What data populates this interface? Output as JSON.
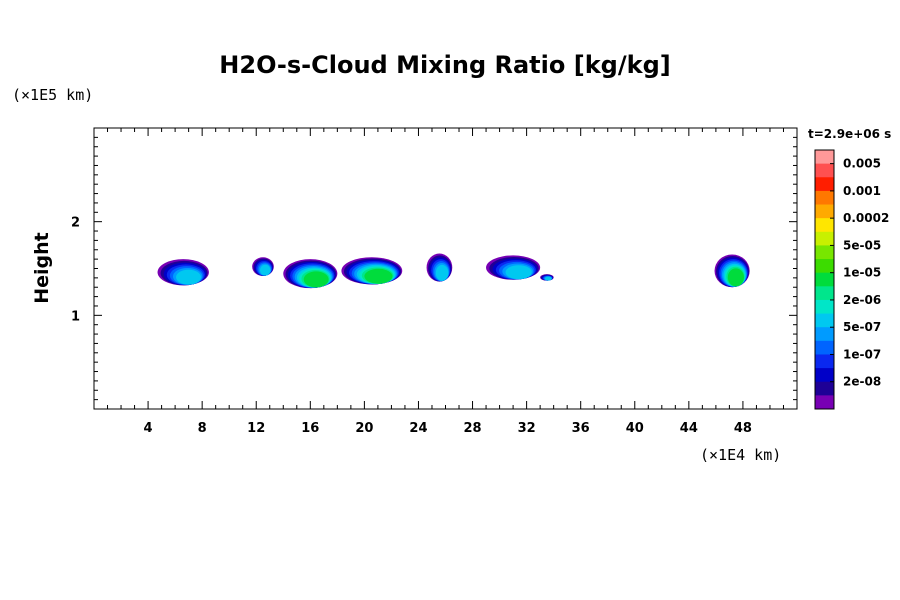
{
  "chart_data": {
    "type": "heatmap",
    "title": "H2O-s-Cloud Mixing Ratio [kg/kg]",
    "xlabel": "",
    "ylabel": "Height",
    "x_unit_label": "(×1E4 km)",
    "y_unit_label": "(×1E5 km)",
    "time_label": "t=2.9e+06 s",
    "xlim": [
      0,
      52
    ],
    "ylim": [
      0,
      3
    ],
    "x_ticks": [
      4,
      8,
      12,
      16,
      20,
      24,
      28,
      32,
      36,
      40,
      44,
      48
    ],
    "y_ticks": [
      1,
      2
    ],
    "colorbar": {
      "labels": [
        "0.005",
        "0.001",
        "0.0002",
        "5e-05",
        "1e-05",
        "2e-06",
        "5e-07",
        "1e-07",
        "2e-08"
      ],
      "colors": [
        "#ff9999",
        "#ff5050",
        "#ff1e00",
        "#ff7800",
        "#ffaa00",
        "#ffe600",
        "#c8f000",
        "#78e600",
        "#3cdc00",
        "#00dc3c",
        "#00e68c",
        "#00e6c8",
        "#00c8f0",
        "#009bff",
        "#0064ff",
        "#0a28f0",
        "#0000c8",
        "#1e0096",
        "#7800b4"
      ]
    },
    "clouds": [
      {
        "x": [
          4.7,
          8.5
        ],
        "y": [
          1.32,
          1.6
        ],
        "max_level": "5e-07"
      },
      {
        "x": [
          11.7,
          13.3
        ],
        "y": [
          1.42,
          1.62
        ],
        "max_level": "5e-07"
      },
      {
        "x": [
          14.0,
          18.0
        ],
        "y": [
          1.29,
          1.6
        ],
        "max_level": "1e-05"
      },
      {
        "x": [
          18.3,
          22.8
        ],
        "y": [
          1.33,
          1.62
        ],
        "max_level": "1e-05"
      },
      {
        "x": [
          24.6,
          26.5
        ],
        "y": [
          1.36,
          1.66
        ],
        "max_level": "5e-07"
      },
      {
        "x": [
          29.0,
          33.0
        ],
        "y": [
          1.38,
          1.64
        ],
        "max_level": "5e-07"
      },
      {
        "x": [
          33.0,
          34.0
        ],
        "y": [
          1.37,
          1.44
        ],
        "max_level": "5e-07"
      },
      {
        "x": [
          45.9,
          48.5
        ],
        "y": [
          1.3,
          1.65
        ],
        "max_level": "1e-05"
      }
    ]
  }
}
